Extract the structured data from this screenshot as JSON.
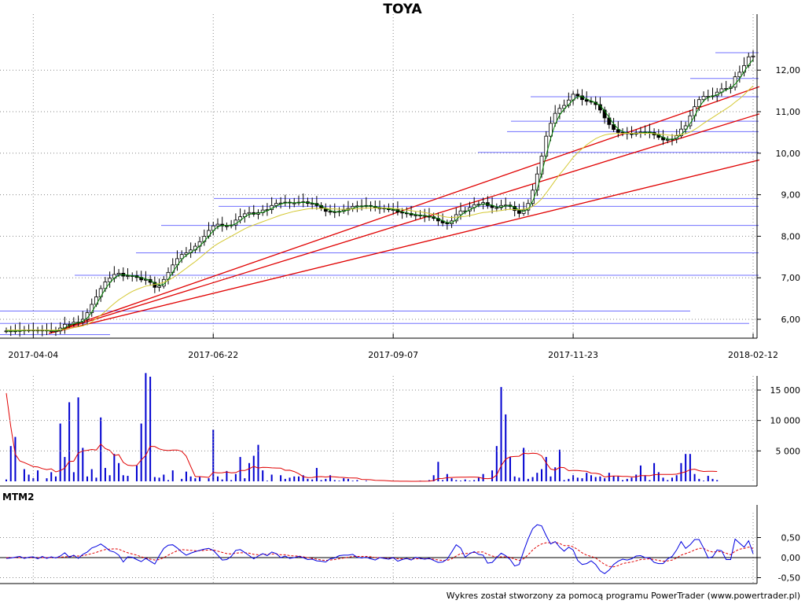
{
  "title": "TOYA",
  "footer": "Wykres został stworzony za pomocą programu PowerTrader (www.powertrader.pl)",
  "chart_data": [
    {
      "type": "candlestick",
      "name": "price",
      "x_ticks": [
        "2017-04-04",
        "2017-06-22",
        "2017-09-07",
        "2017-11-23",
        "2018-02-12"
      ],
      "y_ticks": [
        "6,00",
        "7,00",
        "8,00",
        "9,00",
        "10,00",
        "11,00",
        "12,00"
      ],
      "ylim": [
        5.6,
        12.9
      ],
      "grid": true,
      "colors": {
        "up": "#ffffff",
        "down": "#000000",
        "ma_fast": "#008000",
        "ma_slow": "#d4c832",
        "support": "#7070ff",
        "trend": "#e00000"
      },
      "closes": [
        5.72,
        5.72,
        5.72,
        5.73,
        5.74,
        5.74,
        5.74,
        5.73,
        5.74,
        5.72,
        5.72,
        5.72,
        5.79,
        5.88,
        5.88,
        5.93,
        5.93,
        6.0,
        6.16,
        6.36,
        6.54,
        6.74,
        6.9,
        6.99,
        7.08,
        7.11,
        7.04,
        7.05,
        7.05,
        7.01,
        6.95,
        6.96,
        6.89,
        6.77,
        6.8,
        6.96,
        7.13,
        7.31,
        7.46,
        7.56,
        7.6,
        7.67,
        7.76,
        7.87,
        8.0,
        8.14,
        8.25,
        8.29,
        8.25,
        8.25,
        8.27,
        8.39,
        8.47,
        8.54,
        8.57,
        8.53,
        8.57,
        8.63,
        8.64,
        8.74,
        8.79,
        8.8,
        8.82,
        8.8,
        8.8,
        8.82,
        8.83,
        8.79,
        8.79,
        8.74,
        8.67,
        8.6,
        8.59,
        8.58,
        8.6,
        8.63,
        8.67,
        8.72,
        8.73,
        8.72,
        8.74,
        8.72,
        8.68,
        8.68,
        8.67,
        8.64,
        8.64,
        8.58,
        8.56,
        8.55,
        8.51,
        8.51,
        8.5,
        8.48,
        8.47,
        8.43,
        8.37,
        8.32,
        8.3,
        8.37,
        8.52,
        8.61,
        8.61,
        8.69,
        8.76,
        8.77,
        8.81,
        8.74,
        8.69,
        8.69,
        8.74,
        8.75,
        8.72,
        8.62,
        8.55,
        8.63,
        8.79,
        9.11,
        9.5,
        9.93,
        10.41,
        10.72,
        10.96,
        11.08,
        11.15,
        11.28,
        11.42,
        11.38,
        11.29,
        11.25,
        11.23,
        11.17,
        11.04,
        10.85,
        10.69,
        10.57,
        10.5,
        10.49,
        10.47,
        10.46,
        10.49,
        10.51,
        10.51,
        10.5,
        10.44,
        10.38,
        10.32,
        10.33,
        10.34,
        10.42,
        10.58,
        10.66,
        10.9,
        11.12,
        11.29,
        11.37,
        11.37,
        11.38,
        11.47,
        11.55,
        11.56,
        11.59,
        11.84,
        11.95,
        12.11,
        12.32,
        12.34
      ],
      "ma_slow": [
        5.74,
        5.74,
        5.74,
        5.74,
        5.74,
        5.74,
        5.74,
        5.74,
        5.74,
        5.74,
        5.74,
        5.74,
        5.75,
        5.76,
        5.78,
        5.8,
        5.82,
        5.84,
        5.88,
        5.94,
        6.02,
        6.1,
        6.19,
        6.29,
        6.38,
        6.47,
        6.54,
        6.61,
        6.67,
        6.72,
        6.76,
        6.8,
        6.82,
        6.84,
        6.86,
        6.89,
        6.94,
        7.0,
        7.07,
        7.15,
        7.23,
        7.31,
        7.39,
        7.48,
        7.57,
        7.66,
        7.75,
        7.82,
        7.88,
        7.94,
        8.0,
        8.06,
        8.12,
        8.18,
        8.23,
        8.27,
        8.31,
        8.35,
        8.39,
        8.43,
        8.47,
        8.51,
        8.54,
        8.57,
        8.6,
        8.62,
        8.64,
        8.66,
        8.67,
        8.67,
        8.67,
        8.67,
        8.66,
        8.66,
        8.65,
        8.65,
        8.65,
        8.66,
        8.66,
        8.67,
        8.68,
        8.68,
        8.68,
        8.68,
        8.68,
        8.68,
        8.67,
        8.66,
        8.65,
        8.63,
        8.62,
        8.6,
        8.59,
        8.57,
        8.55,
        8.53,
        8.51,
        8.48,
        8.46,
        8.45,
        8.46,
        8.47,
        8.48,
        8.5,
        8.52,
        8.55,
        8.57,
        8.58,
        8.6,
        8.61,
        8.62,
        8.64,
        8.65,
        8.64,
        8.64,
        8.65,
        8.67,
        8.72,
        8.8,
        8.9,
        9.04,
        9.19,
        9.34,
        9.49,
        9.62,
        9.76,
        9.9,
        10.01,
        10.11,
        10.2,
        10.28,
        10.35,
        10.4,
        10.44,
        10.46,
        10.47,
        10.48,
        10.48,
        10.48,
        10.48,
        10.48,
        10.48,
        10.48,
        10.48,
        10.47,
        10.46,
        10.45,
        10.44,
        10.43,
        10.43,
        10.45,
        10.47,
        10.51,
        10.57,
        10.64,
        10.72,
        10.79,
        10.86,
        10.93,
        11.0,
        11.07,
        11.14,
        11.23,
        11.31,
        11.41,
        11.52,
        11.62
      ],
      "horizontal_levels": [
        5.63,
        5.9,
        6.2,
        7.06,
        7.6,
        8.26,
        8.72,
        8.91,
        10.02,
        10.52,
        10.77,
        11.36,
        11.8,
        12.42
      ],
      "trend_lines": [
        {
          "from": [
            "2017-04-04",
            5.66
          ],
          "to": [
            "2018-02-12",
            9.8
          ]
        },
        {
          "from": [
            "2017-04-04",
            5.66
          ],
          "to": [
            "2018-02-12",
            10.9
          ]
        },
        {
          "from": [
            "2017-04-04",
            5.66
          ],
          "to": [
            "2018-02-12",
            11.55
          ]
        }
      ]
    },
    {
      "type": "bar",
      "name": "volume",
      "y_ticks": [
        "5 000",
        "10 000",
        "15 000"
      ],
      "ylim": [
        0,
        18500
      ],
      "colors": {
        "bars": "#0000d0",
        "average": "#e00000"
      },
      "values": [
        300,
        5800,
        7300,
        0,
        2000,
        1100,
        500,
        1800,
        0,
        500,
        1500,
        800,
        9500,
        4000,
        13000,
        1500,
        13800,
        5500,
        800,
        2000,
        600,
        10500,
        2200,
        1000,
        4500,
        3000,
        1000,
        900,
        0,
        2600,
        9500,
        17800,
        17200,
        700,
        600,
        1100,
        200,
        1800,
        0,
        400,
        1600,
        800,
        500,
        700,
        0,
        500,
        8500,
        800,
        300,
        1700,
        200,
        1200,
        4000,
        500,
        3000,
        4200,
        6000,
        1800,
        100,
        1100,
        0,
        1000,
        400,
        600,
        800,
        800,
        1000,
        400,
        300,
        2200,
        200,
        400,
        1000,
        200,
        100,
        500,
        400,
        100,
        200,
        0,
        100,
        0,
        0,
        0,
        0,
        0,
        0,
        0,
        0,
        0,
        0,
        0,
        100,
        0,
        200,
        1000,
        3200,
        200,
        1200,
        500,
        200,
        100,
        300,
        100,
        200,
        600,
        1200,
        0,
        1800,
        5800,
        15500,
        11000,
        4000,
        800,
        600,
        5500,
        400,
        700,
        1400,
        2000,
        4000,
        800,
        2300,
        5200,
        200,
        400,
        1000,
        600,
        500,
        1400,
        1000,
        700,
        800,
        500,
        1400,
        900,
        800,
        200,
        400,
        600,
        1100,
        2600,
        1000,
        200,
        3000,
        1500,
        600,
        200,
        600,
        1000,
        3000,
        4500,
        4500,
        1200,
        400,
        100,
        900,
        400,
        200
      ]
    },
    {
      "type": "line",
      "name": "MTM2",
      "title": "MTM2",
      "y_ticks": [
        "-0,50",
        "0,00",
        "0,50"
      ],
      "ylim": [
        -0.62,
        0.9
      ],
      "colors": {
        "mtm": "#0000e0",
        "signal": "#e00000",
        "zero": "#000000"
      },
      "values": [
        -0.02,
        -0.01,
        0.01,
        0.03,
        -0.02,
        0.01,
        0.02,
        -0.03,
        0.03,
        -0.02,
        0.02,
        -0.01,
        0.04,
        0.12,
        0.01,
        0.06,
        -0.02,
        0.08,
        0.14,
        0.24,
        0.28,
        0.34,
        0.26,
        0.17,
        0.14,
        0.06,
        -0.11,
        0.02,
        0.01,
        -0.05,
        -0.1,
        -0.02,
        -0.09,
        -0.16,
        0.05,
        0.23,
        0.31,
        0.32,
        0.24,
        0.14,
        0.06,
        0.11,
        0.15,
        0.18,
        0.21,
        0.23,
        0.18,
        0.06,
        -0.06,
        -0.05,
        0.03,
        0.18,
        0.2,
        0.13,
        0.05,
        -0.03,
        0.04,
        0.1,
        0.05,
        0.14,
        0.1,
        0.0,
        0.04,
        -0.02,
        0.0,
        0.03,
        0.0,
        -0.05,
        -0.04,
        -0.08,
        -0.09,
        -0.11,
        -0.03,
        -0.01,
        0.05,
        0.06,
        0.06,
        0.08,
        0.01,
        -0.01,
        0.01,
        -0.03,
        -0.06,
        0.0,
        -0.02,
        -0.04,
        0.0,
        -0.09,
        -0.05,
        -0.02,
        -0.06,
        0.01,
        -0.02,
        -0.04,
        -0.02,
        -0.07,
        -0.12,
        -0.11,
        -0.04,
        0.14,
        0.32,
        0.24,
        0.01,
        0.1,
        0.15,
        0.08,
        0.06,
        -0.14,
        -0.12,
        0.0,
        0.11,
        0.05,
        -0.05,
        -0.21,
        -0.17,
        0.16,
        0.47,
        0.72,
        0.82,
        0.79,
        0.55,
        0.34,
        0.4,
        0.26,
        0.16,
        0.26,
        0.19,
        -0.07,
        -0.17,
        -0.15,
        -0.08,
        -0.17,
        -0.33,
        -0.4,
        -0.31,
        -0.17,
        -0.09,
        -0.04,
        -0.06,
        -0.03,
        0.04,
        0.05,
        0.0,
        -0.01,
        -0.12,
        -0.15,
        -0.15,
        -0.03,
        0.03,
        0.19,
        0.4,
        0.23,
        0.32,
        0.45,
        0.45,
        0.24,
        -0.01,
        0.02,
        0.19,
        0.17,
        -0.05,
        -0.05,
        0.46,
        0.36,
        0.26,
        0.42,
        0.1
      ],
      "signal": [
        0.0,
        0.0,
        0.0,
        0.0,
        0.0,
        0.0,
        0.0,
        0.0,
        0.0,
        0.0,
        0.0,
        0.0,
        0.01,
        0.02,
        0.03,
        0.04,
        0.04,
        0.05,
        0.07,
        0.1,
        0.13,
        0.17,
        0.2,
        0.21,
        0.22,
        0.21,
        0.16,
        0.12,
        0.09,
        0.06,
        0.02,
        -0.01,
        -0.04,
        -0.06,
        -0.05,
        0.0,
        0.06,
        0.12,
        0.17,
        0.2,
        0.19,
        0.18,
        0.17,
        0.17,
        0.18,
        0.19,
        0.19,
        0.16,
        0.13,
        0.1,
        0.09,
        0.11,
        0.12,
        0.12,
        0.11,
        0.08,
        0.07,
        0.08,
        0.08,
        0.09,
        0.09,
        0.07,
        0.07,
        0.05,
        0.04,
        0.04,
        0.02,
        0.0,
        -0.02,
        -0.04,
        -0.06,
        -0.07,
        -0.06,
        -0.05,
        -0.03,
        -0.01,
        0.01,
        0.03,
        0.03,
        0.03,
        0.03,
        0.02,
        0.0,
        0.0,
        -0.01,
        -0.02,
        -0.01,
        -0.03,
        -0.03,
        -0.03,
        -0.04,
        -0.03,
        -0.03,
        -0.03,
        -0.03,
        -0.04,
        -0.06,
        -0.07,
        -0.07,
        -0.03,
        0.04,
        0.1,
        0.1,
        0.11,
        0.13,
        0.14,
        0.14,
        0.08,
        0.04,
        0.02,
        0.02,
        0.02,
        0.01,
        -0.04,
        -0.07,
        -0.03,
        0.07,
        0.19,
        0.28,
        0.34,
        0.37,
        0.37,
        0.38,
        0.35,
        0.3,
        0.3,
        0.27,
        0.2,
        0.12,
        0.06,
        0.03,
        -0.01,
        -0.09,
        -0.17,
        -0.22,
        -0.23,
        -0.2,
        -0.15,
        -0.13,
        -0.11,
        -0.08,
        -0.05,
        -0.04,
        -0.03,
        -0.05,
        -0.07,
        -0.09,
        -0.08,
        -0.06,
        -0.01,
        0.06,
        0.1,
        0.14,
        0.19,
        0.23,
        0.23,
        0.17,
        0.14,
        0.15,
        0.15,
        0.11,
        0.07,
        0.16,
        0.21,
        0.23,
        0.26,
        0.23
      ]
    }
  ]
}
